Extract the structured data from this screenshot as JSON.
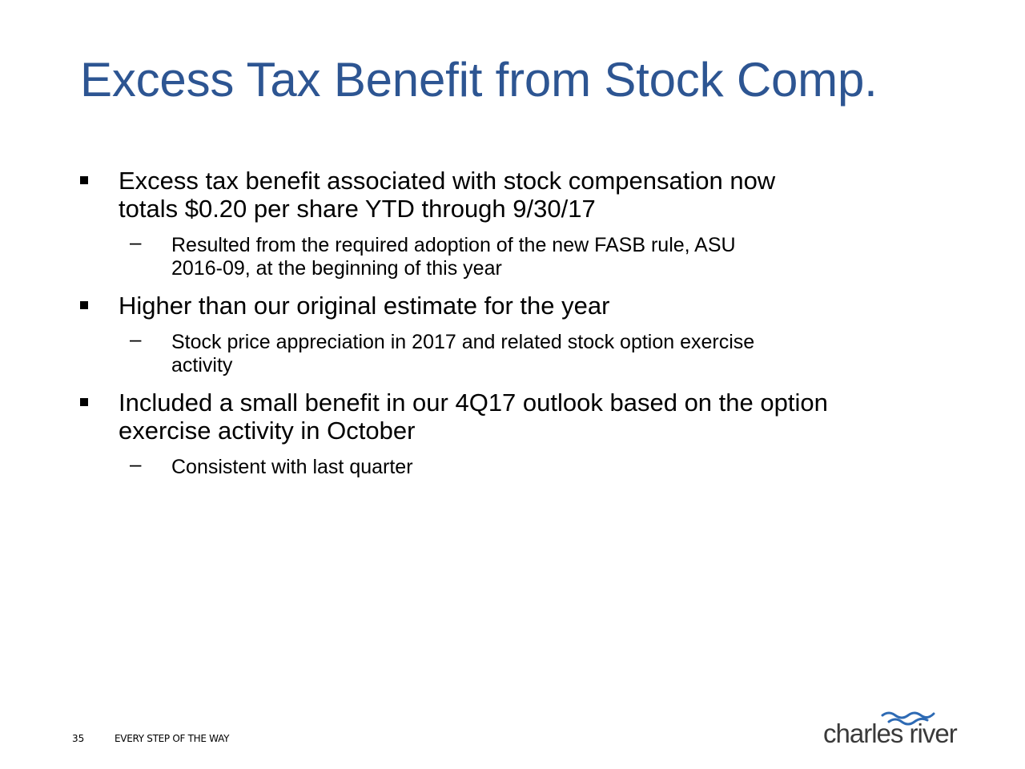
{
  "slide": {
    "title": "Excess Tax Benefit from Stock Comp.",
    "bullets": [
      {
        "text_line1": "Excess tax benefit associated with stock compensation now",
        "text_line2": "totals $0.20 per share YTD through 9/30/17",
        "sub": {
          "line1": "Resulted from the required adoption of the new FASB rule, ASU",
          "line2": "2016-09, at the beginning of this year"
        }
      },
      {
        "text_line1": "Higher than our original estimate for the year",
        "sub": {
          "line1": "Stock price appreciation in 2017 and related stock option exercise",
          "line2": "activity"
        }
      },
      {
        "text_line1": "Included a small benefit in our 4Q17 outlook based on the option",
        "text_line2": "exercise activity in October",
        "sub": {
          "line1": "Consistent with last quarter"
        }
      }
    ]
  },
  "footer": {
    "page_number": "35",
    "tagline": "EVERY STEP OF THE WAY",
    "logo_text": "charles river"
  },
  "colors": {
    "title": "#2d5592",
    "logo_waves": "#2d6ab4"
  }
}
